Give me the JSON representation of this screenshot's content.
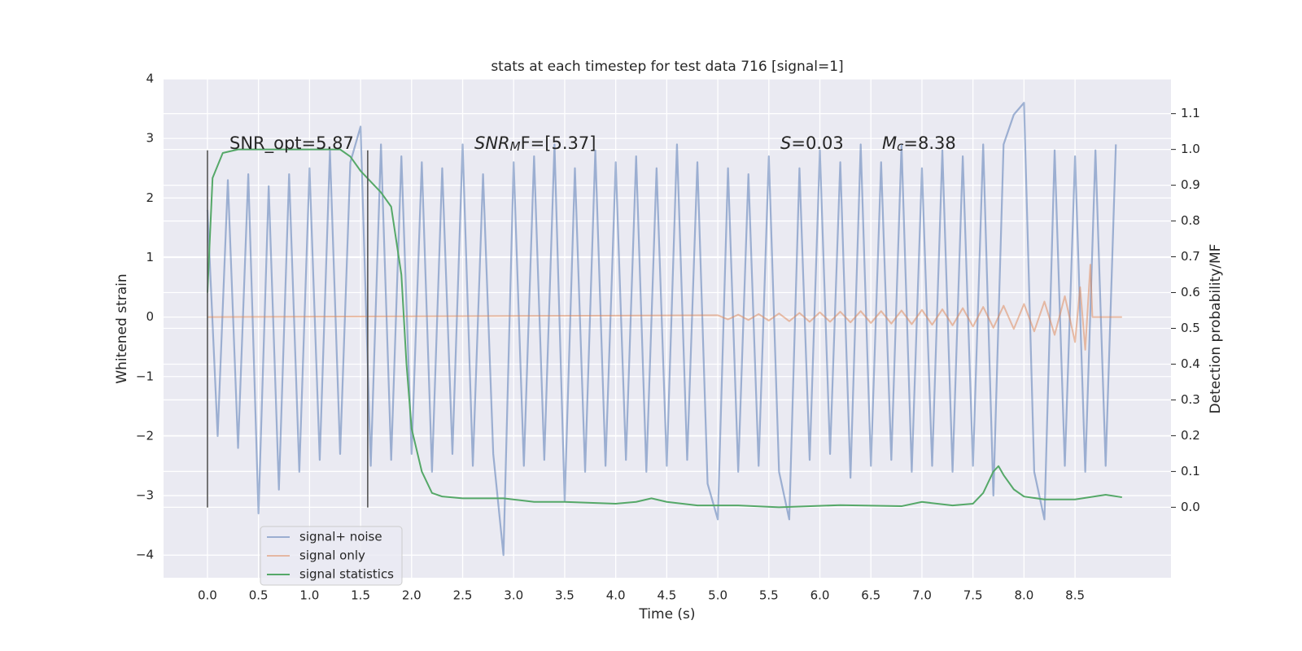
{
  "chart_data": {
    "type": "line",
    "title": "stats at each timestep for test data 716 [signal=1]",
    "xlabel": "Time (s)",
    "ylabel": "Whitened strain",
    "y2label": "Detection probability/MF",
    "xlim": [
      -0.43,
      9.44
    ],
    "ylim": [
      -4.38,
      4.0
    ],
    "y2lim": [
      -0.197,
      1.197
    ],
    "xticks": [
      {
        "value": 0,
        "label": "0.0"
      },
      0.5,
      {
        "value": 1,
        "label": "1.0"
      },
      1.5,
      {
        "value": 2,
        "label": "2.0"
      },
      2.5,
      {
        "value": 3,
        "label": "3.0"
      },
      3.5,
      {
        "value": 4,
        "label": "4.0"
      },
      4.5,
      {
        "value": 5,
        "label": "5.0"
      },
      5.5,
      {
        "value": 6,
        "label": "6.0"
      },
      6.5,
      {
        "value": 7,
        "label": "7.0"
      },
      7.5,
      {
        "value": 8,
        "label": "8.0"
      },
      8.5
    ],
    "yticks": [
      {
        "value": -4,
        "label": "−4"
      },
      {
        "value": -3,
        "label": "−3"
      },
      {
        "value": -2,
        "label": "−2"
      },
      {
        "value": -1,
        "label": "−1"
      },
      0,
      1,
      2,
      3,
      4
    ],
    "y2ticks": [
      {
        "value": 0,
        "label": "0.0"
      },
      0.1,
      0.2,
      0.3,
      0.4,
      0.5,
      0.6,
      0.7,
      0.8,
      0.9,
      {
        "value": 1,
        "label": "1.0"
      },
      1.1
    ],
    "grid": true,
    "legend_loc": "lower left",
    "series": [
      {
        "name": "signal+ noise",
        "color": "#4c72b0",
        "opacity": 0.5,
        "x": [
          0,
          0.1,
          0.2,
          0.3,
          0.4,
          0.5,
          0.6,
          0.7,
          0.8,
          0.9,
          1,
          1.1,
          1.2,
          1.3,
          1.4,
          1.5,
          1.6,
          1.7,
          1.8,
          1.9,
          2,
          2.1,
          2.2,
          2.3,
          2.4,
          2.5,
          2.6,
          2.7,
          2.8,
          2.9,
          3,
          3.1,
          3.2,
          3.3,
          3.4,
          3.5,
          3.6,
          3.7,
          3.8,
          3.9,
          4,
          4.1,
          4.2,
          4.3,
          4.4,
          4.5,
          4.6,
          4.7,
          4.8,
          4.9,
          5,
          5.1,
          5.2,
          5.3,
          5.4,
          5.5,
          5.6,
          5.7,
          5.8,
          5.9,
          6,
          6.1,
          6.2,
          6.3,
          6.4,
          6.5,
          6.6,
          6.7,
          6.8,
          6.9,
          7,
          7.1,
          7.2,
          7.3,
          7.4,
          7.5,
          7.6,
          7.7,
          7.8,
          7.9,
          8,
          8.1,
          8.2,
          8.3,
          8.4,
          8.5,
          8.6,
          8.7,
          8.8,
          8.9
        ],
        "values": [
          1.8,
          -2.0,
          2.3,
          -2.2,
          2.4,
          -3.3,
          2.2,
          -2.9,
          2.4,
          -2.6,
          2.5,
          -2.4,
          2.8,
          -2.3,
          2.6,
          3.2,
          -2.5,
          2.9,
          -2.4,
          2.7,
          -2.3,
          2.6,
          -2.6,
          2.5,
          -2.3,
          2.9,
          -2.5,
          2.4,
          -2.3,
          -4.0,
          2.6,
          -2.5,
          2.7,
          -2.4,
          2.9,
          -3.1,
          2.5,
          -2.6,
          2.8,
          -2.5,
          2.6,
          -2.4,
          2.7,
          -2.6,
          2.5,
          -2.5,
          2.9,
          -2.4,
          2.6,
          -2.8,
          -3.4,
          2.5,
          -2.6,
          2.4,
          -2.5,
          2.7,
          -2.6,
          -3.4,
          2.5,
          -2.4,
          2.8,
          -2.3,
          2.6,
          -2.7,
          2.9,
          -2.5,
          2.6,
          -2.4,
          2.9,
          -2.6,
          2.5,
          -2.5,
          2.8,
          -2.6,
          2.7,
          -2.5,
          2.9,
          -3.0,
          2.9,
          3.4,
          3.6,
          -2.6,
          -3.4,
          2.8,
          -2.5,
          2.7,
          -2.6,
          2.8,
          -2.5,
          2.9
        ]
      },
      {
        "name": "signal only",
        "color": "#dd8452",
        "opacity": 0.5,
        "x": [
          0,
          5,
          5.1,
          5.2,
          5.3,
          5.4,
          5.5,
          5.6,
          5.7,
          5.8,
          5.9,
          6,
          6.1,
          6.2,
          6.3,
          6.4,
          6.5,
          6.6,
          6.7,
          6.8,
          6.9,
          7,
          7.1,
          7.2,
          7.3,
          7.4,
          7.5,
          7.6,
          7.7,
          7.8,
          7.9,
          8,
          8.1,
          8.2,
          8.3,
          8.4,
          8.5,
          8.55,
          8.6,
          8.65,
          8.67,
          8.96
        ],
        "values": [
          0,
          0.03,
          -0.04,
          0.04,
          -0.05,
          0.05,
          -0.06,
          0.06,
          -0.07,
          0.07,
          -0.08,
          0.08,
          -0.08,
          0.09,
          -0.09,
          0.1,
          -0.1,
          0.1,
          -0.11,
          0.11,
          -0.12,
          0.12,
          -0.13,
          0.13,
          -0.14,
          0.15,
          -0.16,
          0.17,
          -0.18,
          0.19,
          -0.2,
          0.22,
          -0.24,
          0.26,
          -0.3,
          0.35,
          -0.42,
          0.5,
          -0.55,
          0.88,
          0,
          0
        ]
      },
      {
        "name": "signal statistics",
        "color": "#55a868",
        "opacity": 1,
        "axis": "y2",
        "x": [
          0,
          0.05,
          0.15,
          0.3,
          1.3,
          1.4,
          1.5,
          1.7,
          1.8,
          1.9,
          1.95,
          2,
          2.1,
          2.2,
          2.3,
          2.5,
          2.9,
          3.2,
          3.5,
          4,
          4.2,
          4.35,
          4.5,
          4.8,
          5.2,
          5.6,
          6.2,
          6.8,
          7,
          7.3,
          7.5,
          7.6,
          7.7,
          7.75,
          7.8,
          7.9,
          8,
          8.2,
          8.5,
          8.8,
          8.96
        ],
        "values": [
          0.6,
          0.92,
          0.99,
          1.0,
          1.0,
          0.98,
          0.94,
          0.88,
          0.84,
          0.65,
          0.4,
          0.22,
          0.1,
          0.04,
          0.03,
          0.025,
          0.025,
          0.015,
          0.015,
          0.01,
          0.015,
          0.025,
          0.015,
          0.005,
          0.005,
          0.0,
          0.006,
          0.003,
          0.015,
          0.005,
          0.01,
          0.04,
          0.1,
          0.115,
          0.09,
          0.05,
          0.03,
          0.022,
          0.022,
          0.035,
          0.028
        ]
      }
    ],
    "vlines": [
      {
        "x": 0,
        "ymin": -3.2,
        "ymax": 2.8
      },
      {
        "x": 1.57,
        "ymin": -3.2,
        "ymax": 2.8
      }
    ],
    "annotations": [
      [
        {
          "text": "SNR_opt=5.87"
        }
      ],
      [
        {
          "text": "SNR",
          "style": "italic"
        },
        {
          "text": "M",
          "style": "italic-sub"
        },
        {
          "text": "F=[5.37]"
        }
      ],
      [
        {
          "text": "S",
          "style": "italic"
        },
        {
          "text": "=0.03"
        }
      ],
      [
        {
          "text": "M",
          "style": "italic"
        },
        {
          "text": "c",
          "style": "italic-sub"
        },
        {
          "text": "=8.38"
        }
      ]
    ]
  }
}
